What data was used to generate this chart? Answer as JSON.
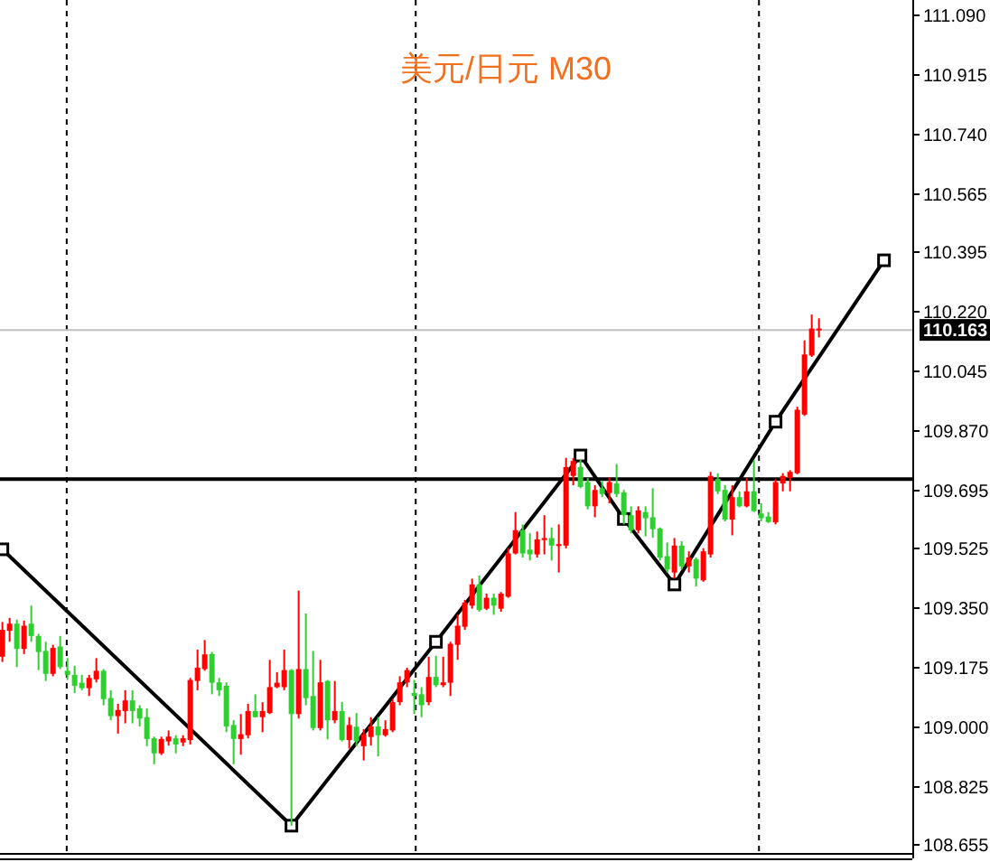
{
  "chart_data": {
    "type": "candlestick",
    "title": "美元/日元 M30",
    "categories": [
      null,
      null,
      null,
      null,
      null,
      null,
      null,
      null,
      null,
      null,
      null,
      null,
      null,
      null,
      null,
      null,
      null,
      null,
      null,
      null,
      null,
      null,
      null,
      null,
      null,
      null,
      null,
      null,
      null,
      null,
      null,
      null,
      null,
      null,
      null,
      null,
      null,
      null,
      null,
      null,
      null,
      null,
      null,
      null,
      null,
      null,
      null,
      null,
      null,
      null,
      null,
      null,
      null,
      null,
      null,
      null,
      null,
      null,
      null,
      null,
      null,
      null,
      null,
      null,
      null,
      null,
      null,
      null,
      null,
      null,
      null,
      null,
      null,
      null,
      null,
      null,
      null,
      null,
      null,
      null,
      null,
      null,
      null,
      null,
      null,
      null,
      null,
      null,
      null,
      null,
      null,
      null,
      null,
      null,
      null,
      null,
      null,
      null,
      null,
      null,
      null,
      null,
      null,
      null,
      null,
      null,
      null,
      null,
      null,
      null,
      null,
      null,
      null,
      null,
      null,
      null,
      null,
      null,
      null,
      null,
      null,
      null,
      null,
      null,
      null,
      null
    ],
    "ohlc": [
      [
        109.205,
        109.307,
        109.19,
        109.284
      ],
      [
        109.281,
        109.319,
        109.249,
        109.302
      ],
      [
        109.302,
        109.314,
        109.175,
        109.228
      ],
      [
        109.228,
        109.311,
        109.213,
        109.296
      ],
      [
        109.302,
        109.355,
        109.249,
        109.266
      ],
      [
        109.266,
        109.272,
        109.166,
        109.219
      ],
      [
        109.222,
        109.249,
        109.134,
        109.155
      ],
      [
        109.155,
        109.24,
        109.148,
        109.231
      ],
      [
        109.235,
        109.266,
        109.169,
        109.175
      ],
      [
        109.164,
        109.201,
        109.137,
        109.152
      ],
      [
        109.152,
        109.178,
        109.099,
        109.12
      ],
      [
        109.129,
        109.152,
        109.107,
        109.113
      ],
      [
        109.113,
        109.152,
        109.09,
        109.143
      ],
      [
        109.139,
        109.201,
        109.13,
        109.164
      ],
      [
        109.164,
        109.169,
        109.063,
        109.081
      ],
      [
        109.084,
        109.107,
        109.019,
        109.031
      ],
      [
        109.031,
        109.067,
        108.98,
        109.049
      ],
      [
        109.046,
        109.107,
        109.01,
        109.077
      ],
      [
        109.077,
        109.107,
        109.01,
        109.046
      ],
      [
        109.054,
        109.063,
        109.001,
        109.024
      ],
      [
        109.028,
        109.054,
        108.943,
        108.964
      ],
      [
        108.966,
        108.971,
        108.89,
        108.922
      ],
      [
        108.922,
        108.971,
        108.917,
        108.964
      ],
      [
        108.957,
        108.989,
        108.945,
        108.971
      ],
      [
        108.966,
        108.975,
        108.922,
        108.948
      ],
      [
        108.954,
        108.975,
        108.943,
        108.966
      ],
      [
        108.961,
        109.143,
        108.948,
        109.137
      ],
      [
        109.134,
        109.226,
        109.107,
        109.173
      ],
      [
        109.169,
        109.254,
        109.164,
        109.212
      ],
      [
        109.213,
        109.219,
        109.095,
        109.129
      ],
      [
        109.13,
        109.143,
        109.09,
        109.107
      ],
      [
        109.12,
        109.13,
        108.984,
        109.001
      ],
      [
        109.005,
        109.019,
        108.89,
        108.964
      ],
      [
        108.964,
        109.037,
        108.918,
        108.978
      ],
      [
        108.975,
        109.067,
        108.966,
        109.046
      ],
      [
        109.046,
        109.095,
        109.028,
        109.028
      ],
      [
        109.028,
        109.072,
        108.984,
        109.046
      ],
      [
        109.04,
        109.196,
        109.037,
        109.116
      ],
      [
        109.116,
        109.16,
        109.113,
        109.129
      ],
      [
        109.116,
        109.226,
        109.107,
        109.166
      ],
      [
        109.166,
        109.169,
        108.71,
        109.037
      ],
      [
        109.037,
        109.399,
        109.024,
        109.169
      ],
      [
        109.169,
        109.332,
        109.063,
        109.084
      ],
      [
        109.09,
        109.222,
        108.989,
        108.996
      ],
      [
        108.996,
        109.196,
        108.989,
        109.13
      ],
      [
        109.134,
        109.137,
        108.963,
        109.019
      ],
      [
        109.019,
        109.134,
        109.01,
        109.046
      ],
      [
        109.046,
        109.072,
        108.957,
        108.961
      ],
      [
        108.961,
        109.028,
        108.936,
        109.005
      ],
      [
        109.0,
        109.04,
        108.943,
        108.957
      ],
      [
        108.943,
        108.993,
        108.901,
        108.978
      ],
      [
        108.97,
        109.028,
        108.945,
        109.001
      ],
      [
        109.001,
        109.028,
        108.913,
        108.975
      ],
      [
        108.975,
        109.019,
        108.971,
        108.993
      ],
      [
        108.989,
        109.081,
        108.984,
        109.072
      ],
      [
        109.072,
        109.148,
        109.063,
        109.13
      ],
      [
        109.13,
        109.173,
        109.116,
        109.166
      ],
      [
        109.099,
        109.137,
        109.037,
        109.09
      ],
      [
        109.095,
        109.116,
        109.028,
        109.063
      ],
      [
        109.072,
        109.205,
        109.063,
        109.146
      ],
      [
        109.146,
        109.208,
        109.116,
        109.122
      ],
      [
        109.122,
        109.205,
        109.116,
        109.13
      ],
      [
        109.129,
        109.249,
        109.09,
        109.243
      ],
      [
        109.24,
        109.328,
        109.196,
        109.296
      ],
      [
        109.293,
        109.372,
        109.284,
        109.364
      ],
      [
        109.355,
        109.434,
        109.346,
        109.417
      ],
      [
        109.417,
        109.443,
        109.337,
        109.342
      ],
      [
        109.346,
        109.39,
        109.342,
        109.378
      ],
      [
        109.378,
        109.39,
        109.328,
        109.355
      ],
      [
        109.346,
        109.395,
        109.337,
        109.39
      ],
      [
        109.381,
        109.523,
        109.378,
        109.508
      ],
      [
        109.508,
        109.629,
        109.505,
        109.576
      ],
      [
        109.576,
        109.593,
        109.496,
        109.508
      ],
      [
        109.519,
        109.567,
        109.487,
        109.505
      ],
      [
        109.505,
        109.572,
        109.496,
        109.549
      ],
      [
        109.547,
        109.62,
        109.505,
        109.553
      ],
      [
        109.553,
        109.584,
        109.487,
        109.531
      ],
      [
        109.531,
        109.593,
        109.452,
        109.535
      ],
      [
        109.531,
        109.788,
        109.523,
        109.761
      ],
      [
        109.735,
        109.788,
        109.708,
        109.779
      ],
      [
        109.761,
        109.782,
        109.699,
        109.703
      ],
      [
        109.717,
        109.729,
        109.637,
        109.646
      ],
      [
        109.646,
        109.708,
        109.614,
        109.694
      ],
      [
        109.699,
        109.72,
        109.673,
        109.682
      ],
      [
        109.685,
        109.731,
        109.655,
        109.717
      ],
      [
        109.713,
        109.77,
        109.673,
        109.682
      ],
      [
        109.687,
        109.694,
        109.593,
        109.62
      ],
      [
        109.62,
        109.646,
        109.567,
        109.576
      ],
      [
        109.576,
        109.646,
        109.567,
        109.634
      ],
      [
        109.629,
        109.646,
        109.558,
        109.611
      ],
      [
        109.614,
        109.699,
        109.554,
        109.579
      ],
      [
        109.581,
        109.584,
        109.487,
        109.496
      ],
      [
        109.5,
        109.54,
        109.452,
        109.461
      ],
      [
        109.452,
        109.553,
        109.434,
        109.531
      ],
      [
        109.531,
        109.544,
        109.461,
        109.47
      ],
      [
        109.47,
        109.514,
        109.452,
        109.496
      ],
      [
        109.491,
        109.496,
        109.411,
        109.434
      ],
      [
        109.429,
        109.523,
        109.425,
        109.514
      ],
      [
        109.505,
        109.747,
        109.496,
        109.735
      ],
      [
        109.726,
        109.743,
        109.682,
        109.69
      ],
      [
        109.694,
        109.708,
        109.602,
        109.607
      ],
      [
        109.607,
        109.708,
        109.561,
        109.673
      ],
      [
        109.673,
        109.69,
        109.643,
        109.646
      ],
      [
        109.646,
        109.729,
        109.643,
        109.69
      ],
      [
        109.69,
        109.782,
        109.629,
        109.632
      ],
      [
        109.625,
        109.655,
        109.602,
        109.611
      ],
      [
        109.616,
        109.629,
        109.597,
        109.6
      ],
      [
        109.599,
        109.726,
        109.593,
        109.717
      ],
      [
        109.713,
        109.743,
        109.69,
        109.735
      ],
      [
        109.729,
        109.752,
        109.69,
        109.747
      ],
      [
        109.743,
        109.938,
        109.74,
        109.929
      ],
      [
        109.915,
        110.132,
        109.911,
        110.091
      ],
      [
        110.088,
        110.208,
        110.084,
        110.167
      ],
      [
        110.164,
        110.197,
        110.141,
        110.167
      ],
      null,
      null,
      null,
      null,
      null,
      null,
      null,
      null,
      null,
      null,
      null,
      null
    ],
    "colors": [
      "#ff0000",
      "#ff0000",
      "#32cd32",
      "#ff0000",
      "#32cd32",
      "#32cd32",
      "#32cd32",
      "#ff0000",
      "#32cd32",
      "#32cd32",
      "#32cd32",
      "#32cd32",
      "#ff0000",
      "#ff0000",
      "#32cd32",
      "#32cd32",
      "#ff0000",
      "#ff0000",
      "#32cd32",
      "#32cd32",
      "#32cd32",
      "#32cd32",
      "#ff0000",
      "#ff0000",
      "#32cd32",
      "#ff0000",
      "#ff0000",
      "#ff0000",
      "#ff0000",
      "#32cd32",
      "#32cd32",
      "#32cd32",
      "#32cd32",
      "#ff0000",
      "#ff0000",
      "#32cd32",
      "#ff0000",
      "#ff0000",
      "#ff0000",
      "#ff0000",
      "#32cd32",
      "#ff0000",
      "#32cd32",
      "#32cd32",
      "#ff0000",
      "#32cd32",
      "#ff0000",
      "#32cd32",
      "#ff0000",
      "#32cd32",
      "#ff0000",
      "#ff0000",
      "#32cd32",
      "#ff0000",
      "#ff0000",
      "#ff0000",
      "#ff0000",
      "#32cd32",
      "#32cd32",
      "#ff0000",
      "#32cd32",
      "#ff0000",
      "#ff0000",
      "#ff0000",
      "#ff0000",
      "#ff0000",
      "#32cd32",
      "#ff0000",
      "#32cd32",
      "#ff0000",
      "#ff0000",
      "#ff0000",
      "#32cd32",
      "#32cd32",
      "#ff0000",
      "#ff0000",
      "#32cd32",
      "#ff0000",
      "#ff0000",
      "#ff0000",
      "#32cd32",
      "#32cd32",
      "#ff0000",
      "#32cd32",
      "#ff0000",
      "#32cd32",
      "#32cd32",
      "#32cd32",
      "#ff0000",
      "#32cd32",
      "#32cd32",
      "#32cd32",
      "#32cd32",
      "#ff0000",
      "#32cd32",
      "#ff0000",
      "#32cd32",
      "#ff0000",
      "#ff0000",
      "#32cd32",
      "#32cd32",
      "#ff0000",
      "#32cd32",
      "#ff0000",
      "#32cd32",
      "#32cd32",
      "#32cd32",
      "#ff0000",
      "#ff0000",
      "#ff0000",
      "#ff0000",
      "#ff0000",
      "#ff0000",
      "#ff0000",
      null,
      null,
      null,
      null,
      null,
      null,
      null,
      null,
      null,
      null,
      null,
      null
    ],
    "series": [
      {
        "type": "line",
        "color": "#000000",
        "marker": "square",
        "values": [
          109.52,
          null,
          null,
          null,
          null,
          null,
          null,
          null,
          null,
          null,
          null,
          null,
          null,
          null,
          null,
          null,
          null,
          null,
          null,
          null,
          null,
          null,
          null,
          null,
          null,
          null,
          null,
          null,
          null,
          null,
          null,
          null,
          null,
          null,
          null,
          null,
          null,
          null,
          null,
          null,
          108.71,
          null,
          null,
          null,
          null,
          null,
          null,
          null,
          null,
          null,
          null,
          null,
          null,
          null,
          null,
          null,
          null,
          null,
          null,
          null,
          109.249,
          null,
          null,
          null,
          null,
          null,
          null,
          null,
          null,
          null,
          null,
          null,
          null,
          null,
          null,
          null,
          null,
          null,
          null,
          null,
          109.795,
          null,
          null,
          null,
          null,
          null,
          109.609,
          null,
          null,
          null,
          null,
          null,
          null,
          109.417,
          null,
          null,
          null,
          null,
          null,
          null,
          null,
          null,
          null,
          null,
          null,
          null,
          null,
          109.894,
          null,
          null,
          null,
          null,
          null,
          null,
          null,
          null,
          null,
          null,
          null,
          null,
          null,
          null,
          110.367,
          null,
          null,
          null
        ]
      }
    ],
    "ylim": [
      108.63,
      111.13
    ],
    "yticks": [
      {
        "value": 111.09,
        "label": "111.090"
      },
      110.915,
      {
        "value": 110.74,
        "label": "110.740"
      },
      110.565,
      110.395,
      {
        "value": 110.22,
        "label": "110.220"
      },
      110.045,
      {
        "value": 109.87,
        "label": "109.870"
      },
      109.695,
      109.525,
      {
        "value": 109.35,
        "label": "109.350"
      },
      109.175,
      {
        "value": 109.0,
        "label": "109.000"
      },
      108.825,
      108.655
    ],
    "ref_lines": [
      {
        "axis": "y",
        "value": 109.726,
        "color": "#000000"
      },
      {
        "axis": "y",
        "value": 110.163,
        "label": "110.163",
        "color": "#c0c0c0"
      }
    ],
    "tick_labels": "y",
    "grid": false
  }
}
